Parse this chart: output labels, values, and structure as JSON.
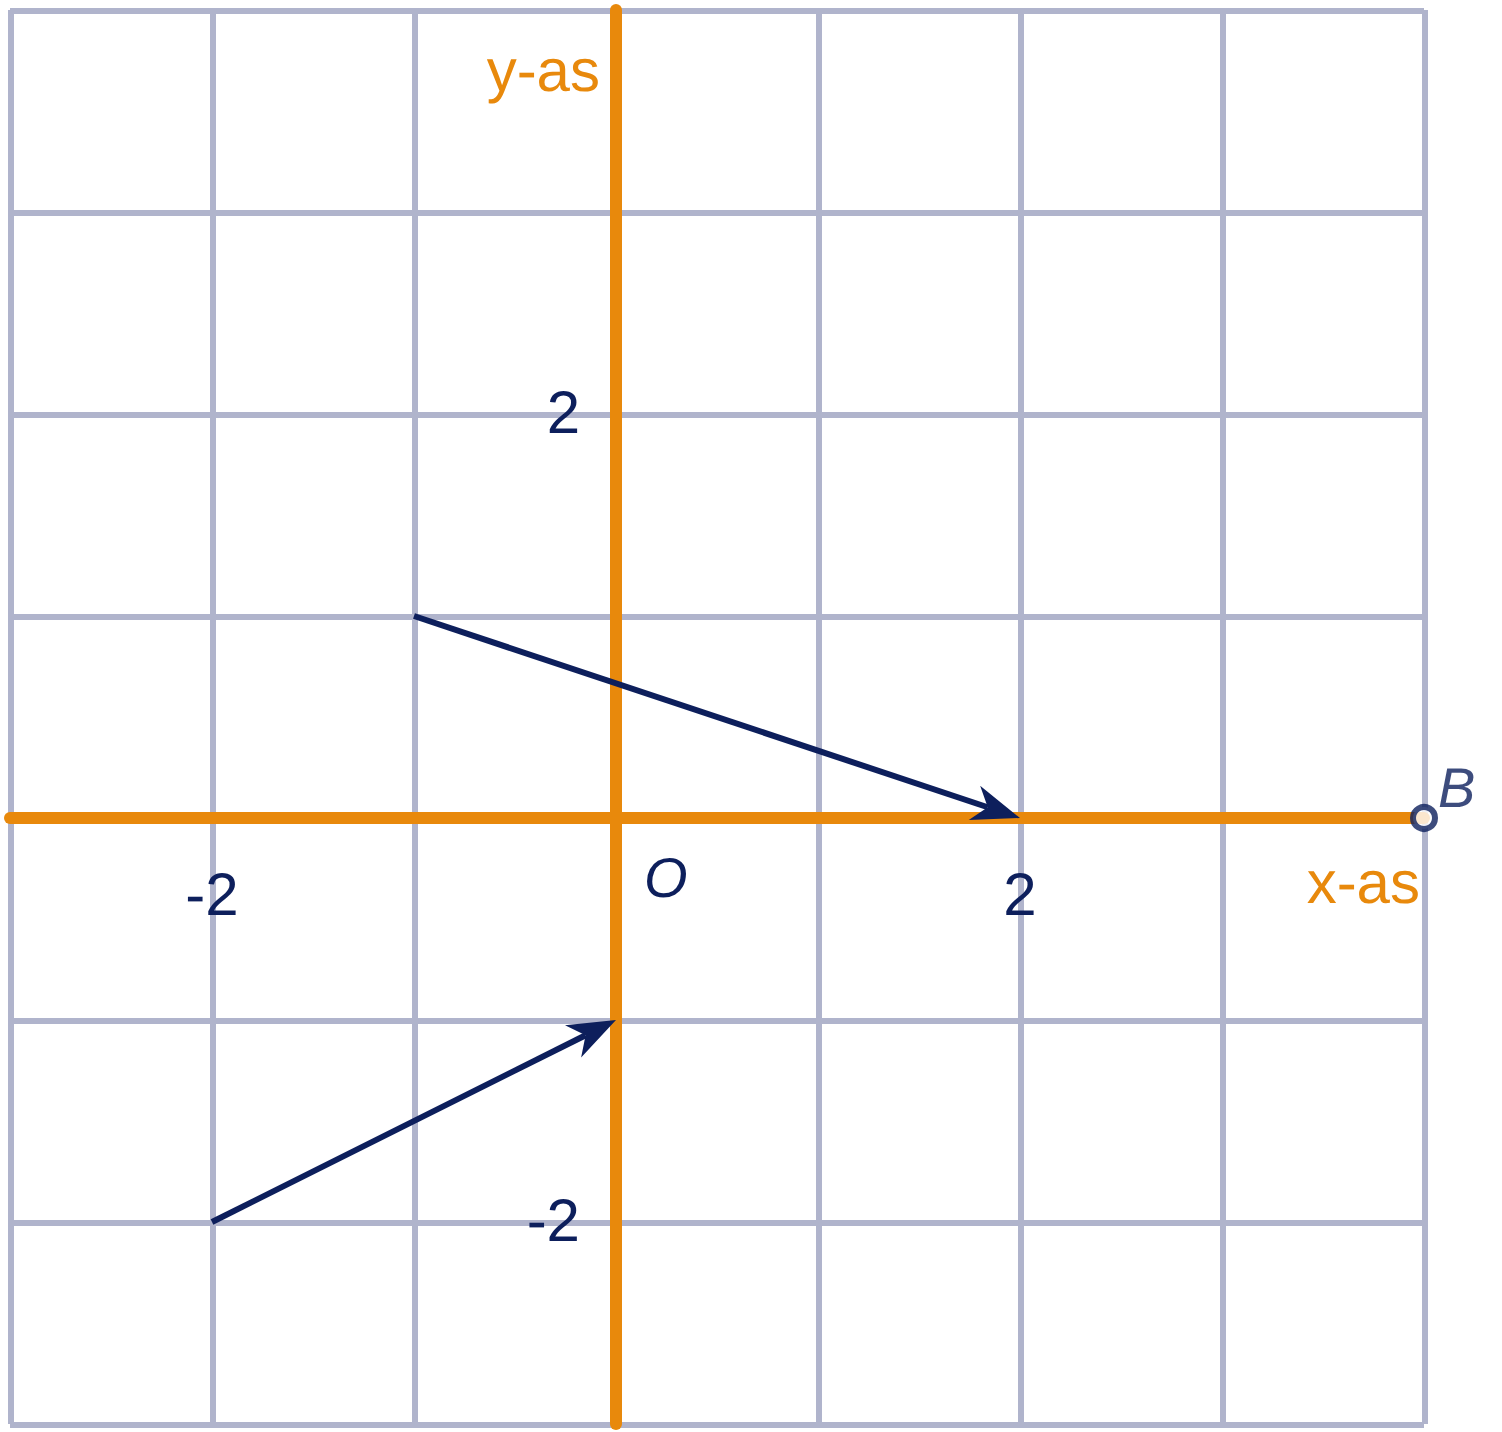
{
  "chart_data": {
    "type": "scatter",
    "xlabel": "x-as",
    "ylabel": "y-as",
    "xlim": [
      -3,
      4
    ],
    "ylim": [
      -3,
      4
    ],
    "xticks": [
      {
        "value": -3,
        "label": null
      },
      {
        "value": -2,
        "label": "-2"
      },
      {
        "value": -1,
        "label": null
      },
      {
        "value": 0,
        "label": null
      },
      {
        "value": 1,
        "label": null
      },
      {
        "value": 2,
        "label": "2"
      },
      {
        "value": 3,
        "label": null
      },
      {
        "value": 4,
        "label": null
      }
    ],
    "yticks": [
      {
        "value": -3,
        "label": null
      },
      {
        "value": -2,
        "label": "-2"
      },
      {
        "value": -1,
        "label": null
      },
      {
        "value": 0,
        "label": null
      },
      {
        "value": 1,
        "label": null
      },
      {
        "value": 2,
        "label": "2"
      },
      {
        "value": 3,
        "label": null
      },
      {
        "value": 4,
        "label": null
      }
    ],
    "grid": true,
    "series": [
      {
        "name": "B",
        "color": "#0d1f5c",
        "x": [
          4
        ],
        "values": [
          0
        ]
      }
    ],
    "annotations": [
      "O"
    ]
  }
}
